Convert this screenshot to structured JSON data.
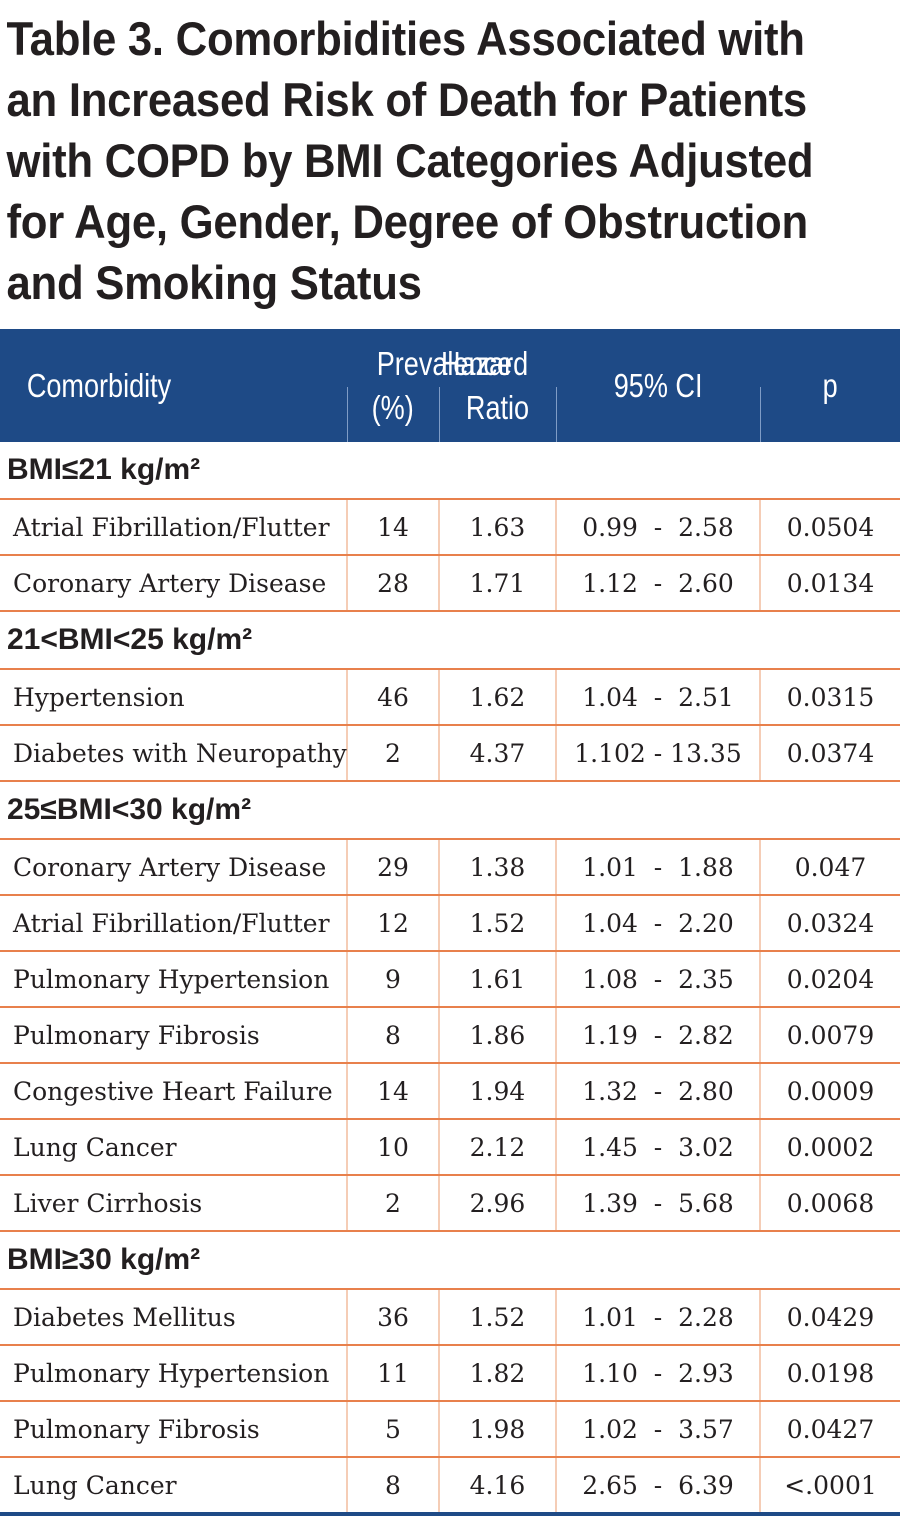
{
  "title_lines": [
    "Table 3. Comorbidities Associated with",
    "an Increased Risk of Death for Patients",
    "with COPD by BMI Categories Adjusted",
    "for Age, Gender, Degree of Obstruction",
    "and Smoking Status"
  ],
  "header": {
    "comorbidity": "Comorbidity",
    "prevalence_line1": "Prevalence",
    "prevalence_line2": "(%)",
    "hazard_line1": "Hazard",
    "hazard_line2": "Ratio",
    "ci": "95% CI",
    "p": "p"
  },
  "groups": [
    {
      "label": "BMI≤21 kg/m²",
      "rows": [
        {
          "comorbidity": "Atrial Fibrillation/Flutter",
          "prevalence": "14",
          "hazard": "1.63",
          "ci": "0.99  -  2.58",
          "p": "0.0504"
        },
        {
          "comorbidity": "Coronary Artery Disease",
          "prevalence": "28",
          "hazard": "1.71",
          "ci": "1.12  -  2.60",
          "p": "0.0134"
        }
      ]
    },
    {
      "label": "21<BMI<25 kg/m²",
      "rows": [
        {
          "comorbidity": "Hypertension",
          "prevalence": "46",
          "hazard": "1.62",
          "ci": "1.04  -  2.51",
          "p": "0.0315"
        },
        {
          "comorbidity": "Diabetes with Neuropathy",
          "prevalence": "2",
          "hazard": "4.37",
          "ci": "1.102 - 13.35",
          "p": "0.0374"
        }
      ]
    },
    {
      "label": "25≤BMI<30 kg/m²",
      "rows": [
        {
          "comorbidity": "Coronary Artery Disease",
          "prevalence": "29",
          "hazard": "1.38",
          "ci": "1.01  -  1.88",
          "p": "0.047"
        },
        {
          "comorbidity": "Atrial Fibrillation/Flutter",
          "prevalence": "12",
          "hazard": "1.52",
          "ci": "1.04  -  2.20",
          "p": "0.0324"
        },
        {
          "comorbidity": "Pulmonary Hypertension",
          "prevalence": "9",
          "hazard": "1.61",
          "ci": "1.08  -  2.35",
          "p": "0.0204"
        },
        {
          "comorbidity": "Pulmonary Fibrosis",
          "prevalence": "8",
          "hazard": "1.86",
          "ci": "1.19  -  2.82",
          "p": "0.0079"
        },
        {
          "comorbidity": "Congestive Heart Failure",
          "prevalence": "14",
          "hazard": "1.94",
          "ci": "1.32  -  2.80",
          "p": "0.0009"
        },
        {
          "comorbidity": "Lung Cancer",
          "prevalence": "10",
          "hazard": "2.12",
          "ci": "1.45  -  3.02",
          "p": "0.0002"
        },
        {
          "comorbidity": "Liver Cirrhosis",
          "prevalence": "2",
          "hazard": "2.96",
          "ci": "1.39  -  5.68",
          "p": "0.0068"
        }
      ]
    },
    {
      "label": "BMI≥30 kg/m²",
      "rows": [
        {
          "comorbidity": "Diabetes Mellitus",
          "prevalence": "36",
          "hazard": "1.52",
          "ci": "1.01  -  2.28",
          "p": "0.0429"
        },
        {
          "comorbidity": "Pulmonary Hypertension",
          "prevalence": "11",
          "hazard": "1.82",
          "ci": "1.10  -  2.93",
          "p": "0.0198"
        },
        {
          "comorbidity": "Pulmonary Fibrosis",
          "prevalence": "5",
          "hazard": "1.98",
          "ci": "1.02  -  3.57",
          "p": "0.0427"
        },
        {
          "comorbidity": "Lung Cancer",
          "prevalence": "8",
          "hazard": "4.16",
          "ci": "2.65  -  6.39",
          "p": "<.0001"
        }
      ]
    }
  ],
  "colors": {
    "header_bg": "#1e4a86",
    "row_rule": "#e8804c",
    "text": "#231f20"
  }
}
